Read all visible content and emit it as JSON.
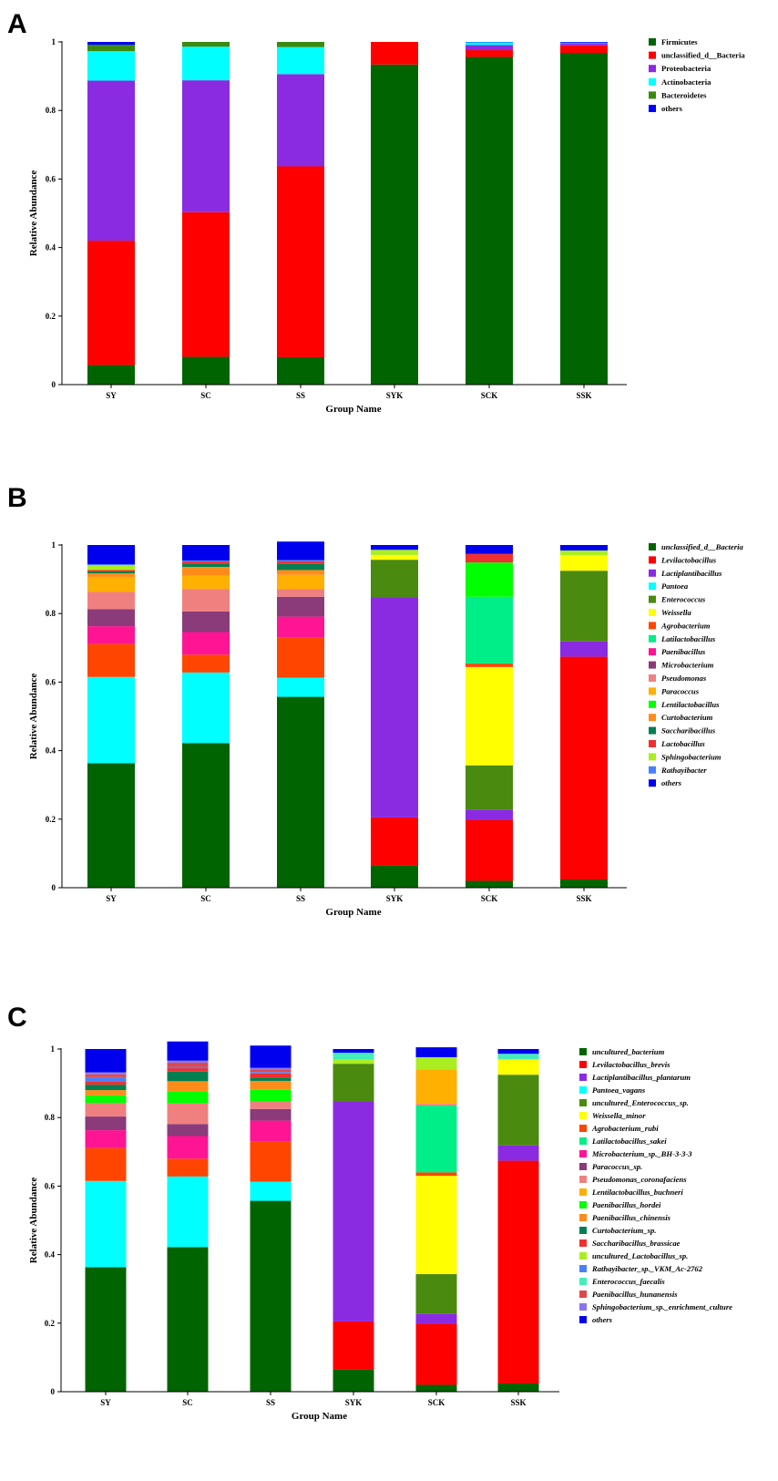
{
  "chart_data": [
    {
      "type": "bar",
      "stacked": true,
      "panel_letter": "A",
      "xlabel": "Group Name",
      "ylabel": "Relative Abundance",
      "ylim": [
        0,
        1
      ],
      "y_ticks": [
        "0",
        "0.2",
        "0.4",
        "0.6",
        "0.8",
        "1"
      ],
      "categories": [
        "SY",
        "SC",
        "SS",
        "SYK",
        "SCK",
        "SSK"
      ],
      "legend_italic": false,
      "series": [
        {
          "name": "Firmicutes",
          "color": "#006400",
          "values": [
            0.057,
            0.081,
            0.08,
            0.934,
            0.956,
            0.968
          ]
        },
        {
          "name": "unclassified_d__Bacteria",
          "color": "#ff0000",
          "values": [
            0.363,
            0.422,
            0.557,
            0.066,
            0.02,
            0.022
          ]
        },
        {
          "name": "Proteobacteria",
          "color": "#8a2be2",
          "values": [
            0.467,
            0.385,
            0.269,
            0.0,
            0.015,
            0.006
          ]
        },
        {
          "name": "Actinobacteria",
          "color": "#00ffff",
          "values": [
            0.086,
            0.098,
            0.079,
            0.0,
            0.008,
            0.002
          ]
        },
        {
          "name": "Bacteroidetes",
          "color": "#3a8a10",
          "values": [
            0.019,
            0.014,
            0.015,
            0.0,
            0.0,
            0.0
          ]
        },
        {
          "name": "others",
          "color": "#0000ff",
          "values": [
            0.008,
            0.0,
            0.0,
            0.0,
            0.001,
            0.002
          ]
        }
      ]
    },
    {
      "type": "bar",
      "stacked": true,
      "panel_letter": "B",
      "xlabel": "Group Name",
      "ylabel": "Relative Abundance",
      "ylim": [
        0,
        1
      ],
      "y_ticks": [
        "0",
        "0.2",
        "0.4",
        "0.6",
        "0.8",
        "1"
      ],
      "categories": [
        "SY",
        "SC",
        "SS",
        "SYK",
        "SCK",
        "SSK"
      ],
      "legend_italic": true,
      "series": [
        {
          "name": "unclassified_d__Bacteria",
          "color": "#006400",
          "values": [
            0.363,
            0.422,
            0.557,
            0.064,
            0.02,
            0.024
          ]
        },
        {
          "name": "Levilactobacillus",
          "color": "#ff0000",
          "values": [
            0.0,
            0.0,
            0.0,
            0.141,
            0.178,
            0.65
          ]
        },
        {
          "name": "Lactiplantibacillus",
          "color": "#8a2be2",
          "values": [
            0.0,
            0.0,
            0.0,
            0.642,
            0.03,
            0.045
          ]
        },
        {
          "name": "Pantoea",
          "color": "#00ffff",
          "values": [
            0.252,
            0.206,
            0.056,
            0.0,
            0.0,
            0.0
          ]
        },
        {
          "name": "Enterococcus",
          "color": "#4a8a0e",
          "values": [
            0.0,
            0.0,
            0.0,
            0.11,
            0.129,
            0.206
          ]
        },
        {
          "name": "Weissella",
          "color": "#ffff00",
          "values": [
            0.0,
            0.0,
            0.0,
            0.014,
            0.287,
            0.045
          ]
        },
        {
          "name": "Agrobacterium",
          "color": "#ff4500",
          "values": [
            0.096,
            0.052,
            0.118,
            0.0,
            0.01,
            0.0
          ]
        },
        {
          "name": "Latilactobacillus",
          "color": "#00ee88",
          "values": [
            0.0,
            0.0,
            0.0,
            0.0,
            0.195,
            0.0
          ]
        },
        {
          "name": "Paenibacillus",
          "color": "#ff1493",
          "values": [
            0.052,
            0.066,
            0.06,
            0.0,
            0.0,
            0.0
          ]
        },
        {
          "name": "Microbacterium",
          "color": "#8b3a7a",
          "values": [
            0.05,
            0.06,
            0.058,
            0.0,
            0.0,
            0.0
          ]
        },
        {
          "name": "Pseudomonas",
          "color": "#f08080",
          "values": [
            0.05,
            0.066,
            0.022,
            0.0,
            0.0,
            0.0
          ]
        },
        {
          "name": "Paracoccus",
          "color": "#ffb000",
          "values": [
            0.044,
            0.038,
            0.042,
            0.0,
            0.0,
            0.0
          ]
        },
        {
          "name": "Lentilactobacillus",
          "color": "#00ff00",
          "values": [
            0.0,
            0.0,
            0.0,
            0.0,
            0.1,
            0.0
          ]
        },
        {
          "name": "Curtobacterium",
          "color": "#ff8c1a",
          "values": [
            0.01,
            0.026,
            0.014,
            0.0,
            0.0,
            0.0
          ]
        },
        {
          "name": "Saccharibacillus",
          "color": "#008050",
          "values": [
            0.006,
            0.01,
            0.018,
            0.0,
            0.0,
            0.0
          ]
        },
        {
          "name": "Lactobacillus",
          "color": "#ee3030",
          "values": [
            0.004,
            0.006,
            0.008,
            0.0,
            0.025,
            0.0
          ]
        },
        {
          "name": "Sphingobacterium",
          "color": "#aaee22",
          "values": [
            0.014,
            0.0,
            0.0,
            0.015,
            0.0,
            0.014
          ]
        },
        {
          "name": "Rathayibacter",
          "color": "#4a80ff",
          "values": [
            0.003,
            0.003,
            0.003,
            0.0,
            0.0,
            0.0
          ]
        },
        {
          "name": "others",
          "color": "#0000ee",
          "values": [
            0.056,
            0.045,
            0.054,
            0.014,
            0.026,
            0.016
          ]
        }
      ]
    },
    {
      "type": "bar",
      "stacked": true,
      "panel_letter": "C",
      "xlabel": "Group Name",
      "ylabel": "Relative Abundance",
      "ylim": [
        0,
        1
      ],
      "y_ticks": [
        "0",
        "0.2",
        "0.4",
        "0.6",
        "0.8",
        "1"
      ],
      "categories": [
        "SY",
        "SC",
        "SS",
        "SYK",
        "SCK",
        "SSK"
      ],
      "legend_italic": true,
      "series": [
        {
          "name": "uncultured_bacterium",
          "color": "#006400",
          "values": [
            0.363,
            0.422,
            0.557,
            0.064,
            0.02,
            0.024
          ]
        },
        {
          "name": "Levilactobacillus_brevis",
          "color": "#ff0000",
          "values": [
            0.0,
            0.0,
            0.0,
            0.141,
            0.178,
            0.65
          ]
        },
        {
          "name": "Lactiplantibacillus_plantarum",
          "color": "#8a2be2",
          "values": [
            0.0,
            0.0,
            0.0,
            0.642,
            0.03,
            0.045
          ]
        },
        {
          "name": "Pantoea_vagans",
          "color": "#00ffff",
          "values": [
            0.252,
            0.206,
            0.056,
            0.0,
            0.0,
            0.0
          ]
        },
        {
          "name": "uncultured_Enterococcus_sp.",
          "color": "#4a8a0e",
          "values": [
            0.0,
            0.0,
            0.0,
            0.11,
            0.115,
            0.206
          ]
        },
        {
          "name": "Weissella_minor",
          "color": "#ffff00",
          "values": [
            0.0,
            0.0,
            0.0,
            0.0,
            0.287,
            0.045
          ]
        },
        {
          "name": "Agrobacterium_rubi",
          "color": "#ff4500",
          "values": [
            0.096,
            0.052,
            0.118,
            0.0,
            0.01,
            0.0
          ]
        },
        {
          "name": "Latilactobacillus_sakei",
          "color": "#00ee88",
          "values": [
            0.0,
            0.0,
            0.0,
            0.0,
            0.195,
            0.0
          ]
        },
        {
          "name": "Microbacterium_sp._BH-3-3-3",
          "color": "#ff1493",
          "values": [
            0.052,
            0.066,
            0.06,
            0.0,
            0.0,
            0.0
          ]
        },
        {
          "name": "Paracoccus_sp.",
          "color": "#8b3a7a",
          "values": [
            0.04,
            0.035,
            0.034,
            0.0,
            0.0,
            0.0
          ]
        },
        {
          "name": "Pseudomonas_coronafaciens",
          "color": "#f08080",
          "values": [
            0.04,
            0.06,
            0.022,
            0.0,
            0.005,
            0.0
          ]
        },
        {
          "name": "Lentilactobacillus_buchneri",
          "color": "#ffb000",
          "values": [
            0.0,
            0.0,
            0.0,
            0.0,
            0.1,
            0.0
          ]
        },
        {
          "name": "Paenibacillus_hordei",
          "color": "#00ff00",
          "values": [
            0.022,
            0.035,
            0.034,
            0.0,
            0.0,
            0.0
          ]
        },
        {
          "name": "Paenibacillus_chinensis",
          "color": "#ff8c1a",
          "values": [
            0.015,
            0.03,
            0.026,
            0.0,
            0.0,
            0.0
          ]
        },
        {
          "name": "Curtobacterium_sp.",
          "color": "#008050",
          "values": [
            0.016,
            0.028,
            0.01,
            0.0,
            0.0,
            0.0
          ]
        },
        {
          "name": "Saccharibacillus_brassicae",
          "color": "#ee3030",
          "values": [
            0.01,
            0.01,
            0.012,
            0.0,
            0.0,
            0.0
          ]
        },
        {
          "name": "uncultured_Lactobacillus_sp.",
          "color": "#aaee22",
          "values": [
            0.0,
            0.0,
            0.0,
            0.012,
            0.036,
            0.0
          ]
        },
        {
          "name": "Rathayibacter_sp._VKM_Ac-2762",
          "color": "#4a80ff",
          "values": [
            0.012,
            0.004,
            0.004,
            0.0,
            0.0,
            0.0
          ]
        },
        {
          "name": "Enterococcus_faecalis",
          "color": "#44eebb",
          "values": [
            0.0,
            0.0,
            0.0,
            0.02,
            0.0,
            0.016
          ]
        },
        {
          "name": "Paenibacillus_hunanensis",
          "color": "#e04848",
          "values": [
            0.008,
            0.012,
            0.008,
            0.0,
            0.0,
            0.0
          ]
        },
        {
          "name": "Sphingobacterium_sp._enrichment_culture",
          "color": "#8877ee",
          "values": [
            0.006,
            0.006,
            0.004,
            0.0,
            0.0,
            0.0
          ]
        },
        {
          "name": "others",
          "color": "#0000ee",
          "values": [
            0.068,
            0.056,
            0.065,
            0.011,
            0.029,
            0.014
          ]
        }
      ]
    }
  ]
}
